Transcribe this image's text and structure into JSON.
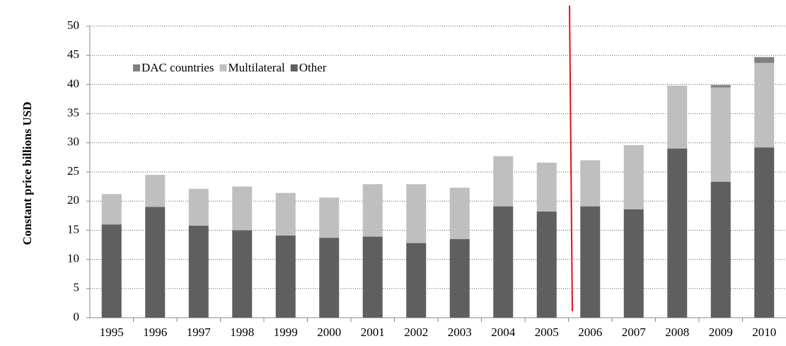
{
  "chart_data": {
    "type": "stacked_bar",
    "ylabel": "Constant price billions USD",
    "categories": [
      "1995",
      "1996",
      "1997",
      "1998",
      "1999",
      "2000",
      "2001",
      "2002",
      "2003",
      "2004",
      "2005",
      "2006",
      "2007",
      "2008",
      "2009",
      "2010"
    ],
    "series": [
      {
        "name": "DAC countries",
        "color": "#808080",
        "values": [
          0,
          0,
          0,
          0,
          0,
          0,
          0,
          0,
          0,
          0,
          0,
          0,
          0,
          0,
          0.4,
          1.0
        ]
      },
      {
        "name": "Multilateral",
        "color": "#bfbfbf",
        "values": [
          5.2,
          5.5,
          6.3,
          7.5,
          7.3,
          6.9,
          9.0,
          10.1,
          8.8,
          8.6,
          8.4,
          7.9,
          11.0,
          10.8,
          16.2,
          14.5
        ]
      },
      {
        "name": "Other",
        "color": "#5f5f5f",
        "values": [
          16,
          19,
          15.8,
          15,
          14.1,
          13.7,
          13.9,
          12.8,
          13.5,
          19.1,
          18.2,
          19.1,
          18.6,
          29,
          23.3,
          29.2
        ]
      }
    ],
    "ylim": [
      0,
      50
    ],
    "yticks": [
      0,
      5,
      10,
      15,
      20,
      25,
      30,
      35,
      40,
      45,
      50
    ],
    "grid": true,
    "legend": "top-left"
  }
}
